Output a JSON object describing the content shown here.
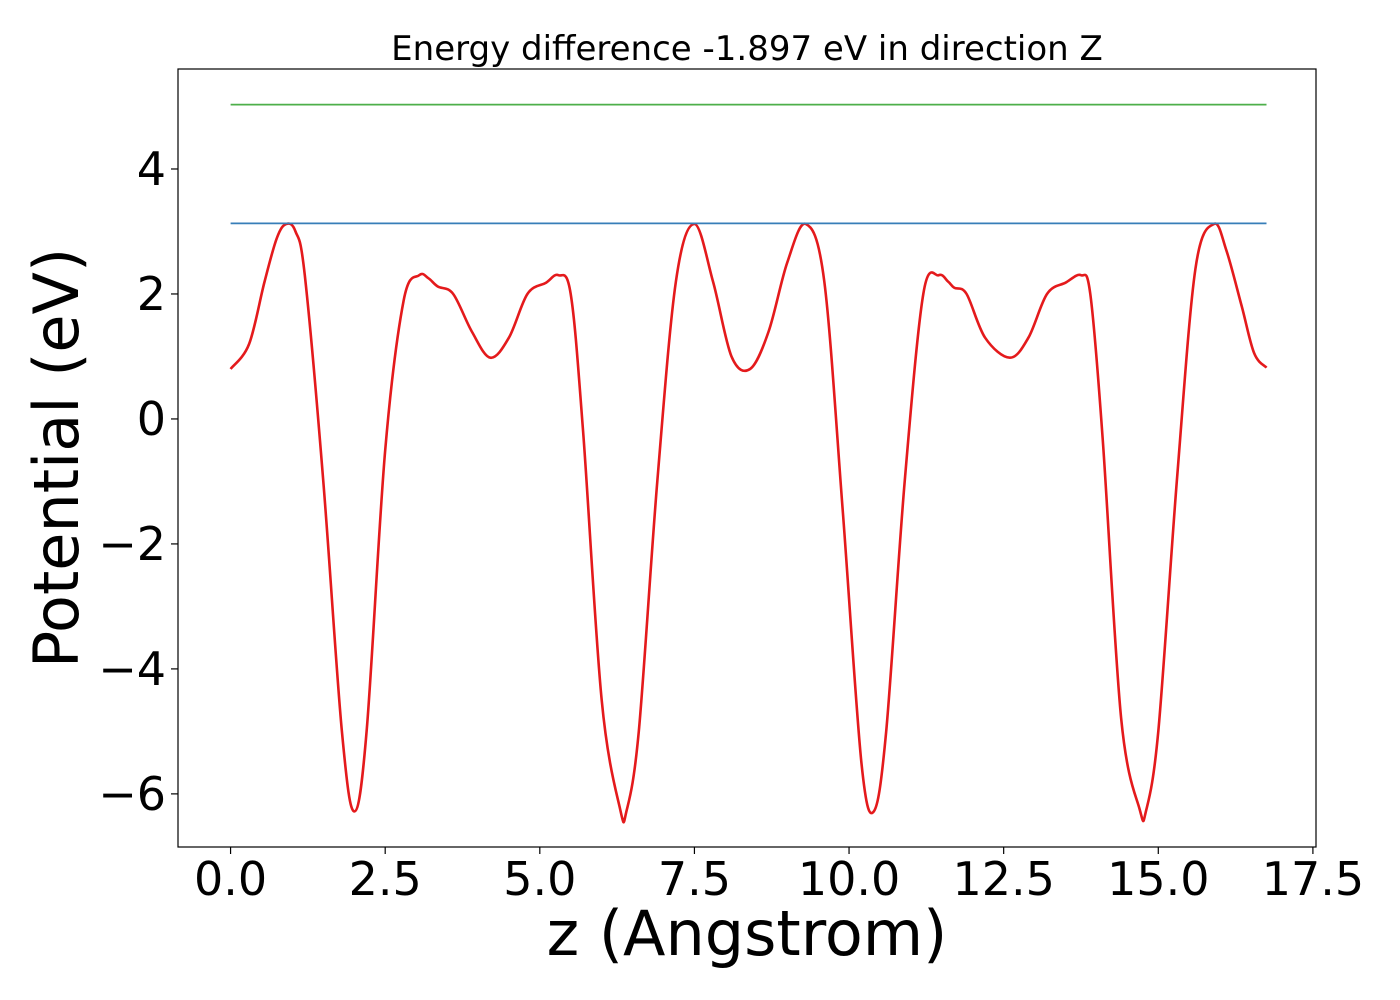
{
  "chart_data": {
    "type": "line",
    "title": "Energy difference -1.897 eV in direction Z",
    "xlabel": "z (Angstrom)",
    "ylabel": "Potential (eV)",
    "xlim": [
      -0.85,
      17.55
    ],
    "ylim": [
      -6.85,
      5.6
    ],
    "x_ticks": [
      0.0,
      2.5,
      5.0,
      7.5,
      10.0,
      12.5,
      15.0,
      17.5
    ],
    "x_tick_labels": [
      "0.0",
      "2.5",
      "5.0",
      "7.5",
      "10.0",
      "12.5",
      "15.0",
      "17.5"
    ],
    "y_ticks": [
      -6,
      -4,
      -2,
      0,
      2,
      4
    ],
    "y_tick_labels": [
      "−6",
      "−4",
      "−2",
      "0",
      "2",
      "4"
    ],
    "grid": false,
    "series": [
      {
        "color": "#e41a1c",
        "style": "curve",
        "x": [
          0.0,
          0.3,
          0.55,
          0.75,
          0.9,
          1.05,
          1.2,
          1.5,
          1.8,
          2.0,
          2.2,
          2.5,
          2.8,
          3.05,
          3.2,
          3.35,
          3.6,
          3.9,
          4.2,
          4.5,
          4.8,
          5.1,
          5.3,
          5.5,
          5.7,
          6.0,
          6.3,
          6.4,
          6.6,
          6.9,
          7.2,
          7.5,
          7.8,
          8.1,
          8.4,
          8.7,
          9.0,
          9.3,
          9.6,
          9.9,
          10.2,
          10.4,
          10.6,
          10.9,
          11.2,
          11.45,
          11.6,
          11.7,
          11.9,
          12.2,
          12.6,
          12.9,
          13.2,
          13.5,
          13.75,
          13.9,
          14.1,
          14.4,
          14.7,
          14.8,
          15.0,
          15.3,
          15.6,
          15.9,
          16.1,
          16.35,
          16.55,
          16.75
        ],
        "y": [
          0.8,
          1.2,
          2.2,
          2.9,
          3.12,
          3.0,
          2.3,
          -1.0,
          -5.0,
          -6.28,
          -5.0,
          -0.5,
          1.9,
          2.3,
          2.25,
          2.12,
          2.0,
          1.4,
          0.98,
          1.3,
          2.0,
          2.18,
          2.3,
          2.0,
          -0.2,
          -4.5,
          -6.25,
          -6.28,
          -5.0,
          -1.0,
          2.2,
          3.12,
          2.2,
          1.0,
          0.8,
          1.4,
          2.5,
          3.12,
          2.2,
          -1.5,
          -5.5,
          -6.28,
          -5.0,
          -1.0,
          2.0,
          2.3,
          2.2,
          2.1,
          2.0,
          1.3,
          0.98,
          1.3,
          2.0,
          2.18,
          2.3,
          2.0,
          -0.3,
          -4.8,
          -6.25,
          -6.28,
          -5.0,
          -1.0,
          2.4,
          3.12,
          2.7,
          1.8,
          1.05,
          0.82
        ]
      },
      {
        "color": "#377eb8",
        "style": "straight",
        "x": [
          0.0,
          16.75
        ],
        "y": [
          3.13,
          3.13
        ]
      },
      {
        "color": "#4daf4a",
        "style": "straight",
        "x": [
          0.0,
          16.75
        ],
        "y": [
          5.03,
          5.03
        ]
      }
    ]
  }
}
